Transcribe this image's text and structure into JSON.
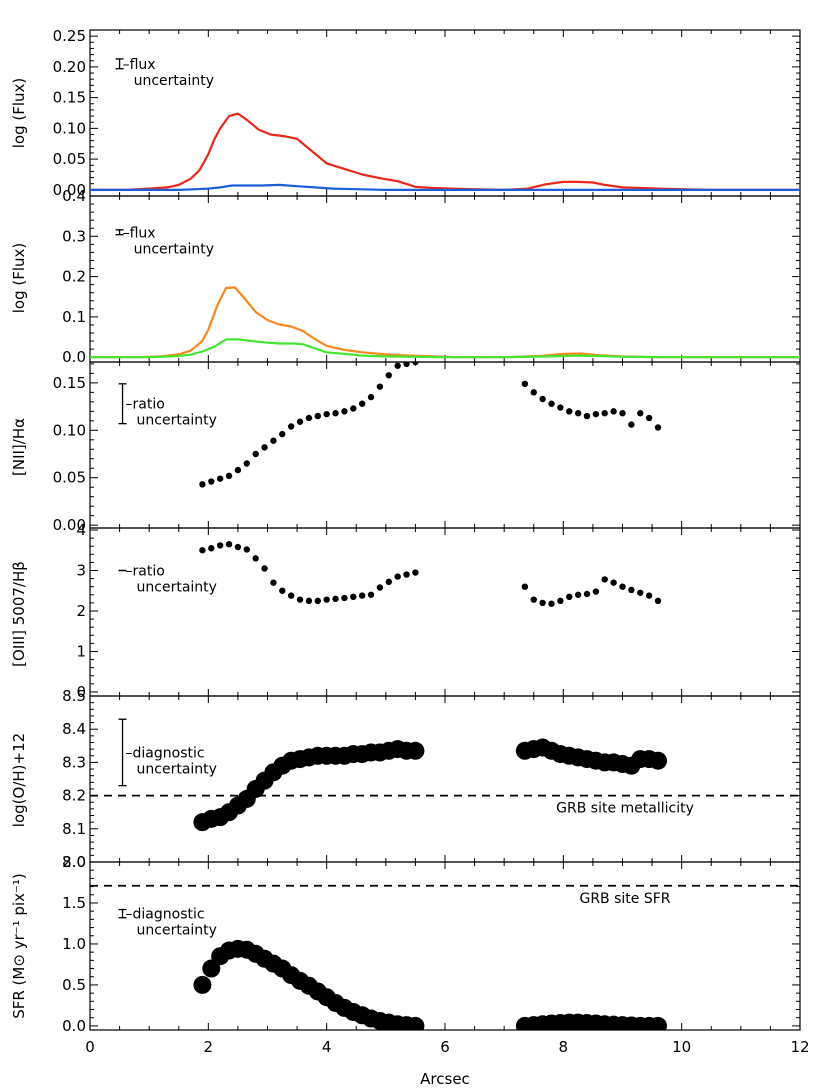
{
  "chart_data": [
    {
      "type": "line",
      "ylabel": "log (Flux)",
      "xlim": [
        0,
        12
      ],
      "ylim": [
        -0.01,
        0.26
      ],
      "yticks": [
        0.0,
        0.05,
        0.1,
        0.15,
        0.2,
        0.25
      ],
      "ytick_labels": [
        "0.00",
        "0.05",
        "0.10",
        "0.15",
        "0.20",
        "0.25"
      ],
      "annotation": {
        "line1": "–flux",
        "line2": "uncertainty",
        "errorbar": {
          "x": 0.5,
          "y": 0.205,
          "half": 0.008
        }
      },
      "series": [
        {
          "color": "#e8281a",
          "x": [
            0,
            0.6,
            1.0,
            1.3,
            1.5,
            1.7,
            1.85,
            2.0,
            2.1,
            2.2,
            2.35,
            2.5,
            2.65,
            2.85,
            3.05,
            3.3,
            3.5,
            3.75,
            4.0,
            4.3,
            4.6,
            4.9,
            5.2,
            5.5,
            5.8,
            6.1,
            6.5,
            7.0,
            7.4,
            7.7,
            8.0,
            8.25,
            8.5,
            8.7,
            9.0,
            9.3,
            9.6,
            10.0,
            10.5,
            11.0,
            11.5,
            12.0
          ],
          "values": [
            0,
            0.0,
            0.002,
            0.004,
            0.008,
            0.018,
            0.032,
            0.058,
            0.082,
            0.1,
            0.12,
            0.124,
            0.114,
            0.098,
            0.09,
            0.087,
            0.083,
            0.063,
            0.043,
            0.034,
            0.025,
            0.019,
            0.014,
            0.005,
            0.003,
            0.002,
            0.001,
            0.0,
            0.002,
            0.009,
            0.013,
            0.013,
            0.012,
            0.008,
            0.004,
            0.003,
            0.002,
            0.001,
            0.0,
            0.0,
            0.0,
            0.0
          ]
        },
        {
          "color": "#1a5fd8",
          "x": [
            0,
            1.0,
            1.5,
            1.8,
            2.0,
            2.2,
            2.4,
            2.6,
            2.9,
            3.2,
            3.5,
            3.8,
            4.1,
            4.5,
            5.0,
            5.5,
            6.0,
            7.0,
            8.0,
            9.0,
            10.0,
            11.0,
            12.0
          ],
          "values": [
            0,
            0.0,
            0.0,
            0.001,
            0.002,
            0.004,
            0.007,
            0.007,
            0.007,
            0.008,
            0.006,
            0.004,
            0.002,
            0.001,
            0.0,
            0.0,
            0.0,
            0.0,
            0.0,
            0.0,
            0.0,
            0.0,
            0.0
          ]
        }
      ]
    },
    {
      "type": "line",
      "ylabel": "log (Flux)",
      "xlim": [
        0,
        12
      ],
      "ylim": [
        -0.012,
        0.4
      ],
      "yticks": [
        0.0,
        0.1,
        0.2,
        0.3,
        0.4
      ],
      "ytick_labels": [
        "0.0",
        "0.1",
        "0.2",
        "0.3",
        "0.4"
      ],
      "annotation": {
        "line1": "–flux",
        "line2": "uncertainty",
        "errorbar": {
          "x": 0.5,
          "y": 0.31,
          "half": 0.006
        }
      },
      "series": [
        {
          "color": "#f5891e",
          "x": [
            0,
            0.8,
            1.2,
            1.5,
            1.7,
            1.9,
            2.0,
            2.15,
            2.3,
            2.45,
            2.6,
            2.8,
            3.0,
            3.2,
            3.4,
            3.6,
            3.8,
            4.0,
            4.3,
            4.6,
            5.0,
            5.4,
            5.8,
            6.2,
            7.0,
            7.6,
            8.0,
            8.3,
            8.6,
            9.0,
            9.5,
            10.0,
            11.0,
            12.0
          ],
          "values": [
            0,
            0.0,
            0.002,
            0.007,
            0.016,
            0.04,
            0.068,
            0.128,
            0.172,
            0.173,
            0.148,
            0.112,
            0.092,
            0.081,
            0.076,
            0.065,
            0.045,
            0.028,
            0.018,
            0.012,
            0.007,
            0.004,
            0.002,
            0.0,
            0.0,
            0.003,
            0.008,
            0.009,
            0.005,
            0.002,
            0.0,
            0.0,
            0.0,
            0.0
          ]
        },
        {
          "color": "#44e632",
          "x": [
            0,
            1.0,
            1.4,
            1.7,
            1.9,
            2.1,
            2.3,
            2.5,
            2.8,
            3.0,
            3.2,
            3.45,
            3.6,
            3.8,
            4.0,
            4.3,
            4.6,
            5.0,
            5.5,
            6.0,
            7.0,
            7.8,
            8.2,
            8.6,
            9.0,
            10.0,
            12.0
          ],
          "values": [
            0,
            0.0,
            0.002,
            0.006,
            0.014,
            0.026,
            0.044,
            0.044,
            0.039,
            0.036,
            0.034,
            0.034,
            0.032,
            0.022,
            0.012,
            0.008,
            0.004,
            0.002,
            0.001,
            0.0,
            0.0,
            0.002,
            0.004,
            0.003,
            0.001,
            0.0,
            0.0
          ]
        }
      ]
    },
    {
      "type": "scatter",
      "ylabel": "[NII]/Hα",
      "xlim": [
        0,
        12
      ],
      "ylim": [
        -0.003,
        0.172
      ],
      "yticks": [
        0.0,
        0.05,
        0.1,
        0.15
      ],
      "ytick_labels": [
        "0.00",
        "0.05",
        "0.10",
        "0.15"
      ],
      "annotation": {
        "line1": "–ratio",
        "line2": "uncertainty",
        "errorbar": {
          "x": 0.55,
          "y": 0.128,
          "half": 0.021
        }
      },
      "marker_size": "small",
      "series": [
        {
          "color": "#000000",
          "x": [
            1.9,
            2.05,
            2.2,
            2.35,
            2.5,
            2.65,
            2.8,
            2.95,
            3.1,
            3.25,
            3.4,
            3.55,
            3.7,
            3.85,
            4.0,
            4.15,
            4.3,
            4.45,
            4.6,
            4.75,
            4.9,
            5.05,
            5.2,
            5.35,
            5.5,
            7.35,
            7.5,
            7.65,
            7.8,
            7.95,
            8.1,
            8.25,
            8.4,
            8.55,
            8.7,
            8.85,
            9.0,
            9.15,
            9.3,
            9.45,
            9.6
          ],
          "values": [
            0.043,
            0.046,
            0.049,
            0.052,
            0.058,
            0.065,
            0.075,
            0.082,
            0.089,
            0.096,
            0.104,
            0.109,
            0.113,
            0.115,
            0.117,
            0.118,
            0.12,
            0.123,
            0.128,
            0.135,
            0.146,
            0.158,
            0.168,
            0.17,
            0.172,
            0.149,
            0.14,
            0.133,
            0.128,
            0.124,
            0.12,
            0.118,
            0.115,
            0.117,
            0.118,
            0.12,
            0.118,
            0.106,
            0.118,
            0.113,
            0.103
          ]
        }
      ]
    },
    {
      "type": "scatter",
      "ylabel": "[OIII] 5007/Hβ",
      "xlim": [
        0,
        12
      ],
      "ylim": [
        -0.1,
        4.05
      ],
      "yticks": [
        0,
        1,
        2,
        3,
        4
      ],
      "ytick_labels": [
        "0",
        "1",
        "2",
        "3",
        "4"
      ],
      "annotation": {
        "line1": "–ratio",
        "line2": "uncertainty",
        "errorbar": {
          "x": 0.55,
          "y": 3.0,
          "half": 0.0
        }
      },
      "marker_size": "small",
      "series": [
        {
          "color": "#000000",
          "x": [
            1.9,
            2.05,
            2.2,
            2.35,
            2.5,
            2.65,
            2.8,
            2.95,
            3.1,
            3.25,
            3.4,
            3.55,
            3.7,
            3.85,
            4.0,
            4.15,
            4.3,
            4.45,
            4.6,
            4.75,
            4.9,
            5.05,
            5.2,
            5.35,
            5.5,
            7.35,
            7.5,
            7.65,
            7.8,
            7.95,
            8.1,
            8.25,
            8.4,
            8.55,
            8.7,
            8.85,
            9.0,
            9.15,
            9.3,
            9.45,
            9.6
          ],
          "values": [
            3.5,
            3.55,
            3.62,
            3.65,
            3.58,
            3.52,
            3.3,
            3.05,
            2.7,
            2.5,
            2.38,
            2.28,
            2.25,
            2.25,
            2.28,
            2.3,
            2.32,
            2.35,
            2.38,
            2.4,
            2.58,
            2.72,
            2.85,
            2.9,
            2.95,
            2.6,
            2.28,
            2.2,
            2.18,
            2.25,
            2.35,
            2.4,
            2.42,
            2.48,
            2.78,
            2.7,
            2.6,
            2.52,
            2.45,
            2.38,
            2.25
          ]
        }
      ]
    },
    {
      "type": "scatter",
      "ylabel": "log(O/H)+12",
      "xlim": [
        0,
        12
      ],
      "ylim": [
        8.0,
        8.5
      ],
      "yticks": [
        8.0,
        8.1,
        8.2,
        8.3,
        8.4,
        8.5
      ],
      "ytick_labels": [
        "8.0",
        "8.1",
        "8.2",
        "8.3",
        "8.4",
        "8.5"
      ],
      "annotation": {
        "line1": "–diagnostic",
        "line2": "uncertainty",
        "errorbar": {
          "x": 0.55,
          "y": 8.33,
          "half": 0.1
        }
      },
      "reference": {
        "value": 8.2,
        "label": "GRB site metallicity"
      },
      "marker_size": "large",
      "series": [
        {
          "color": "#000000",
          "x": [
            1.9,
            2.05,
            2.2,
            2.35,
            2.5,
            2.65,
            2.8,
            2.95,
            3.1,
            3.25,
            3.4,
            3.55,
            3.7,
            3.85,
            4.0,
            4.15,
            4.3,
            4.45,
            4.6,
            4.75,
            4.9,
            5.05,
            5.2,
            5.35,
            5.5,
            7.35,
            7.5,
            7.65,
            7.8,
            7.95,
            8.1,
            8.25,
            8.4,
            8.55,
            8.7,
            8.85,
            9.0,
            9.15,
            9.3,
            9.45,
            9.6
          ],
          "values": [
            8.12,
            8.13,
            8.135,
            8.15,
            8.17,
            8.19,
            8.22,
            8.245,
            8.27,
            8.29,
            8.305,
            8.31,
            8.315,
            8.32,
            8.32,
            8.32,
            8.32,
            8.325,
            8.325,
            8.33,
            8.33,
            8.335,
            8.34,
            8.335,
            8.335,
            8.335,
            8.34,
            8.345,
            8.335,
            8.325,
            8.32,
            8.315,
            8.31,
            8.305,
            8.3,
            8.3,
            8.295,
            8.29,
            8.31,
            8.31,
            8.305
          ]
        }
      ]
    },
    {
      "type": "scatter",
      "ylabel": "SFR (M⊙ yr⁻¹ pix⁻¹)",
      "xlabel": "Arcsec",
      "xlim": [
        0,
        12
      ],
      "ylim": [
        -0.05,
        2.0
      ],
      "yticks": [
        0.0,
        0.5,
        1.0,
        1.5,
        2.0
      ],
      "ytick_labels": [
        "0.0",
        "0.5",
        "1.0",
        "1.5",
        "2.0"
      ],
      "xticks": [
        0,
        2,
        4,
        6,
        8,
        10,
        12
      ],
      "xtick_labels": [
        "0",
        "2",
        "4",
        "6",
        "8",
        "10",
        "12"
      ],
      "annotation": {
        "line1": "–diagnostic",
        "line2": "uncertainty",
        "errorbar": {
          "x": 0.55,
          "y": 1.37,
          "half": 0.05
        }
      },
      "reference": {
        "value": 1.71,
        "label": "GRB site SFR"
      },
      "marker_size": "large",
      "series": [
        {
          "color": "#000000",
          "x": [
            1.9,
            2.05,
            2.2,
            2.35,
            2.5,
            2.65,
            2.8,
            2.95,
            3.1,
            3.25,
            3.4,
            3.55,
            3.7,
            3.85,
            4.0,
            4.15,
            4.3,
            4.45,
            4.6,
            4.75,
            4.9,
            5.05,
            5.2,
            5.35,
            5.5,
            7.35,
            7.5,
            7.65,
            7.8,
            7.95,
            8.1,
            8.25,
            8.4,
            8.55,
            8.7,
            8.85,
            9.0,
            9.15,
            9.3,
            9.45,
            9.6
          ],
          "values": [
            0.5,
            0.7,
            0.85,
            0.92,
            0.94,
            0.93,
            0.88,
            0.82,
            0.76,
            0.7,
            0.62,
            0.55,
            0.49,
            0.42,
            0.35,
            0.28,
            0.22,
            0.17,
            0.13,
            0.09,
            0.06,
            0.04,
            0.02,
            0.01,
            0.0,
            0.0,
            0.01,
            0.02,
            0.03,
            0.035,
            0.04,
            0.04,
            0.035,
            0.03,
            0.02,
            0.015,
            0.01,
            0.005,
            0.0,
            0.0,
            0.0
          ]
        }
      ]
    }
  ]
}
